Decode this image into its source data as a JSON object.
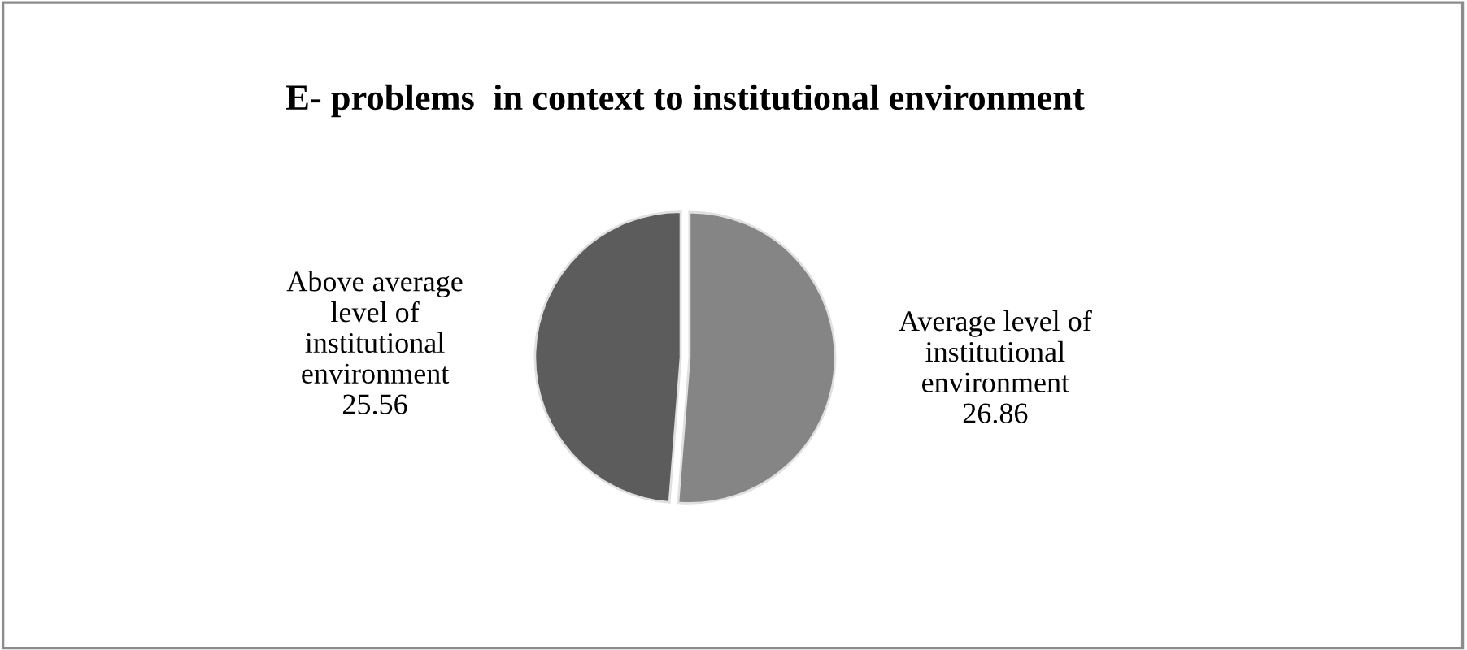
{
  "chart_data": {
    "type": "pie",
    "title": "E- problems  in context to institutional environment",
    "categories": [
      "Average level of institutional environment",
      "Above average level of institutional environment"
    ],
    "values": [
      26.86,
      25.56
    ],
    "colors": [
      "#858585",
      "#5c5c5c"
    ],
    "data_labels": true,
    "legend": false
  }
}
